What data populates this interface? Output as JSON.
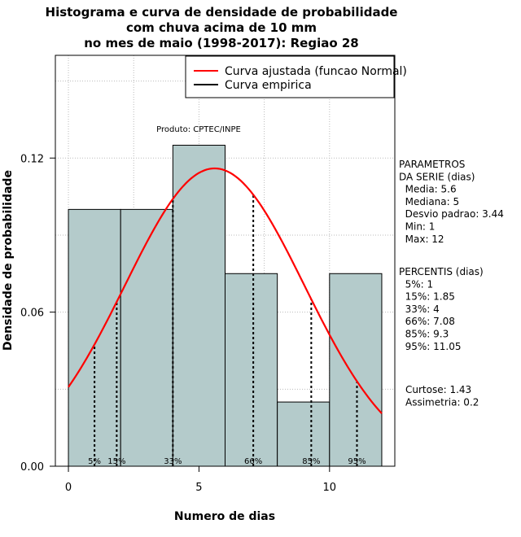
{
  "chart_data": {
    "type": "bar",
    "title_lines": [
      "Histograma e curva de densidade de probabilidade",
      "com chuva acima de 10 mm",
      "no mes de maio (1998-2017): Regiao 28"
    ],
    "xlabel": "Numero de dias",
    "ylabel": "Densidade de probabilidade",
    "xlim": [
      -0.5,
      12.5
    ],
    "ylim": [
      0,
      0.16
    ],
    "x_ticks": [
      0,
      5,
      10
    ],
    "y_ticks": [
      0.0,
      0.06,
      0.12
    ],
    "y_tick_labels": [
      "0.00",
      "0.06",
      "0.12"
    ],
    "grid": true,
    "bins": [
      {
        "x0": 0,
        "x1": 2,
        "density": 0.1
      },
      {
        "x0": 2,
        "x1": 4,
        "density": 0.1
      },
      {
        "x0": 4,
        "x1": 6,
        "density": 0.125
      },
      {
        "x0": 6,
        "x1": 8,
        "density": 0.075
      },
      {
        "x0": 8,
        "x1": 10,
        "density": 0.025
      },
      {
        "x0": 10,
        "x1": 12,
        "density": 0.075
      }
    ],
    "normal_curve": {
      "mean": 5.6,
      "sd": 3.44,
      "x_range": [
        0,
        12
      ]
    },
    "percentile_lines": [
      {
        "label": "5%",
        "x": 1
      },
      {
        "label": "15%",
        "x": 1.85
      },
      {
        "label": "33%",
        "x": 4
      },
      {
        "label": "66%",
        "x": 7.08
      },
      {
        "label": "85%",
        "x": 9.3
      },
      {
        "label": "95%",
        "x": 11.05
      }
    ],
    "legend": {
      "position": "top-right",
      "entries": [
        {
          "label": "Curva ajustada (funcao Normal)",
          "color": "#ff0000"
        },
        {
          "label": "Curva empirica",
          "color": "#000000"
        }
      ]
    },
    "annotation": "Produto: CPTEC/INPE",
    "bar_color": "#b4cbcb",
    "curve_color": "#ff0000"
  },
  "side_panel": {
    "parametros_lines": [
      "PARAMETROS",
      "DA SERIE (dias)",
      "  Media: 5.6",
      "  Mediana: 5",
      "  Desvio padrao: 3.44",
      "  Min: 1",
      "  Max: 12"
    ],
    "percentis_lines": [
      "PERCENTIS (dias)",
      "  5%: 1",
      "  15%: 1.85",
      "  33%: 4",
      "  66%: 7.08",
      "  85%: 9.3",
      "  95%: 11.05"
    ],
    "stats_lines": [
      "Curtose: 1.43",
      "Assimetria: 0.2"
    ]
  }
}
